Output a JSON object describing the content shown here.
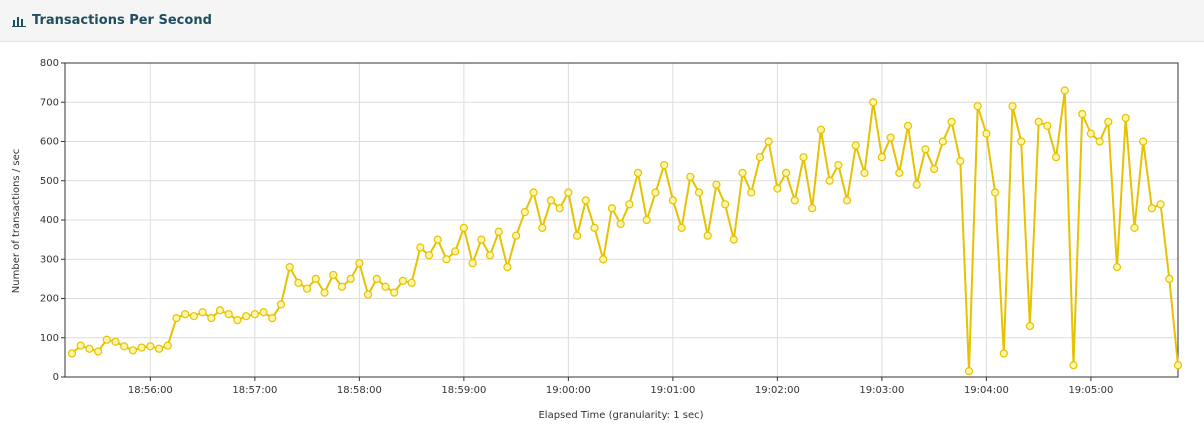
{
  "chart_data": {
    "type": "line",
    "title": "Transactions Per Second",
    "x_label": "Elapsed Time (granularity: 1 sec)",
    "y_label": "Number of transactions / sec",
    "color": "#e6c200",
    "grid": true,
    "xlim": [
      "18:55:11",
      "19:05:50"
    ],
    "xticks": [
      "18:56:00",
      "18:57:00",
      "18:58:00",
      "18:59:00",
      "19:00:00",
      "19:01:00",
      "19:02:00",
      "19:03:00",
      "19:04:00",
      "19:05:00"
    ],
    "ylim": [
      0,
      800
    ],
    "yticks": [
      0,
      100,
      200,
      300,
      400,
      500,
      600,
      700,
      800
    ],
    "x": [
      "18:55:15",
      "18:55:20",
      "18:55:25",
      "18:55:30",
      "18:55:35",
      "18:55:40",
      "18:55:45",
      "18:55:50",
      "18:55:55",
      "18:56:00",
      "18:56:05",
      "18:56:10",
      "18:56:15",
      "18:56:20",
      "18:56:25",
      "18:56:30",
      "18:56:35",
      "18:56:40",
      "18:56:45",
      "18:56:50",
      "18:56:55",
      "18:57:00",
      "18:57:05",
      "18:57:10",
      "18:57:15",
      "18:57:20",
      "18:57:25",
      "18:57:30",
      "18:57:35",
      "18:57:40",
      "18:57:45",
      "18:57:50",
      "18:57:55",
      "18:58:00",
      "18:58:05",
      "18:58:10",
      "18:58:15",
      "18:58:20",
      "18:58:25",
      "18:58:30",
      "18:58:35",
      "18:58:40",
      "18:58:45",
      "18:58:50",
      "18:58:55",
      "18:59:00",
      "18:59:05",
      "18:59:10",
      "18:59:15",
      "18:59:20",
      "18:59:25",
      "18:59:30",
      "18:59:35",
      "18:59:40",
      "18:59:45",
      "18:59:50",
      "18:59:55",
      "19:00:00",
      "19:00:05",
      "19:00:10",
      "19:00:15",
      "19:00:20",
      "19:00:25",
      "19:00:30",
      "19:00:35",
      "19:00:40",
      "19:00:45",
      "19:00:50",
      "19:00:55",
      "19:01:00",
      "19:01:05",
      "19:01:10",
      "19:01:15",
      "19:01:20",
      "19:01:25",
      "19:01:30",
      "19:01:35",
      "19:01:40",
      "19:01:45",
      "19:01:50",
      "19:01:55",
      "19:02:00",
      "19:02:05",
      "19:02:10",
      "19:02:15",
      "19:02:20",
      "19:02:25",
      "19:02:30",
      "19:02:35",
      "19:02:40",
      "19:02:45",
      "19:02:50",
      "19:02:55",
      "19:03:00",
      "19:03:05",
      "19:03:10",
      "19:03:15",
      "19:03:20",
      "19:03:25",
      "19:03:30",
      "19:03:35",
      "19:03:40",
      "19:03:45",
      "19:03:50",
      "19:03:55",
      "19:04:00",
      "19:04:05",
      "19:04:10",
      "19:04:15",
      "19:04:20",
      "19:04:25",
      "19:04:30",
      "19:04:35",
      "19:04:40",
      "19:04:45",
      "19:04:50",
      "19:04:55",
      "19:05:00",
      "19:05:05",
      "19:05:10",
      "19:05:15",
      "19:05:20",
      "19:05:25",
      "19:05:30",
      "19:05:35",
      "19:05:40",
      "19:05:45",
      "19:05:50"
    ],
    "values": [
      60,
      80,
      72,
      65,
      95,
      90,
      78,
      68,
      75,
      78,
      72,
      80,
      150,
      160,
      155,
      165,
      150,
      170,
      160,
      145,
      155,
      160,
      165,
      150,
      185,
      280,
      240,
      225,
      250,
      215,
      260,
      230,
      250,
      290,
      210,
      250,
      230,
      215,
      245,
      240,
      330,
      310,
      350,
      300,
      320,
      380,
      290,
      350,
      310,
      370,
      280,
      360,
      420,
      470,
      380,
      450,
      430,
      470,
      360,
      450,
      380,
      300,
      430,
      390,
      440,
      520,
      400,
      470,
      540,
      450,
      380,
      510,
      470,
      360,
      490,
      440,
      350,
      520,
      470,
      560,
      600,
      480,
      520,
      450,
      560,
      430,
      630,
      500,
      540,
      450,
      590,
      520,
      700,
      560,
      610,
      520,
      640,
      490,
      580,
      530,
      600,
      650,
      550,
      15,
      690,
      620,
      470,
      60,
      690,
      600,
      130,
      650,
      640,
      560,
      730,
      30,
      670,
      620,
      600,
      650,
      280,
      660,
      380,
      600,
      430,
      440,
      250,
      30
    ]
  }
}
